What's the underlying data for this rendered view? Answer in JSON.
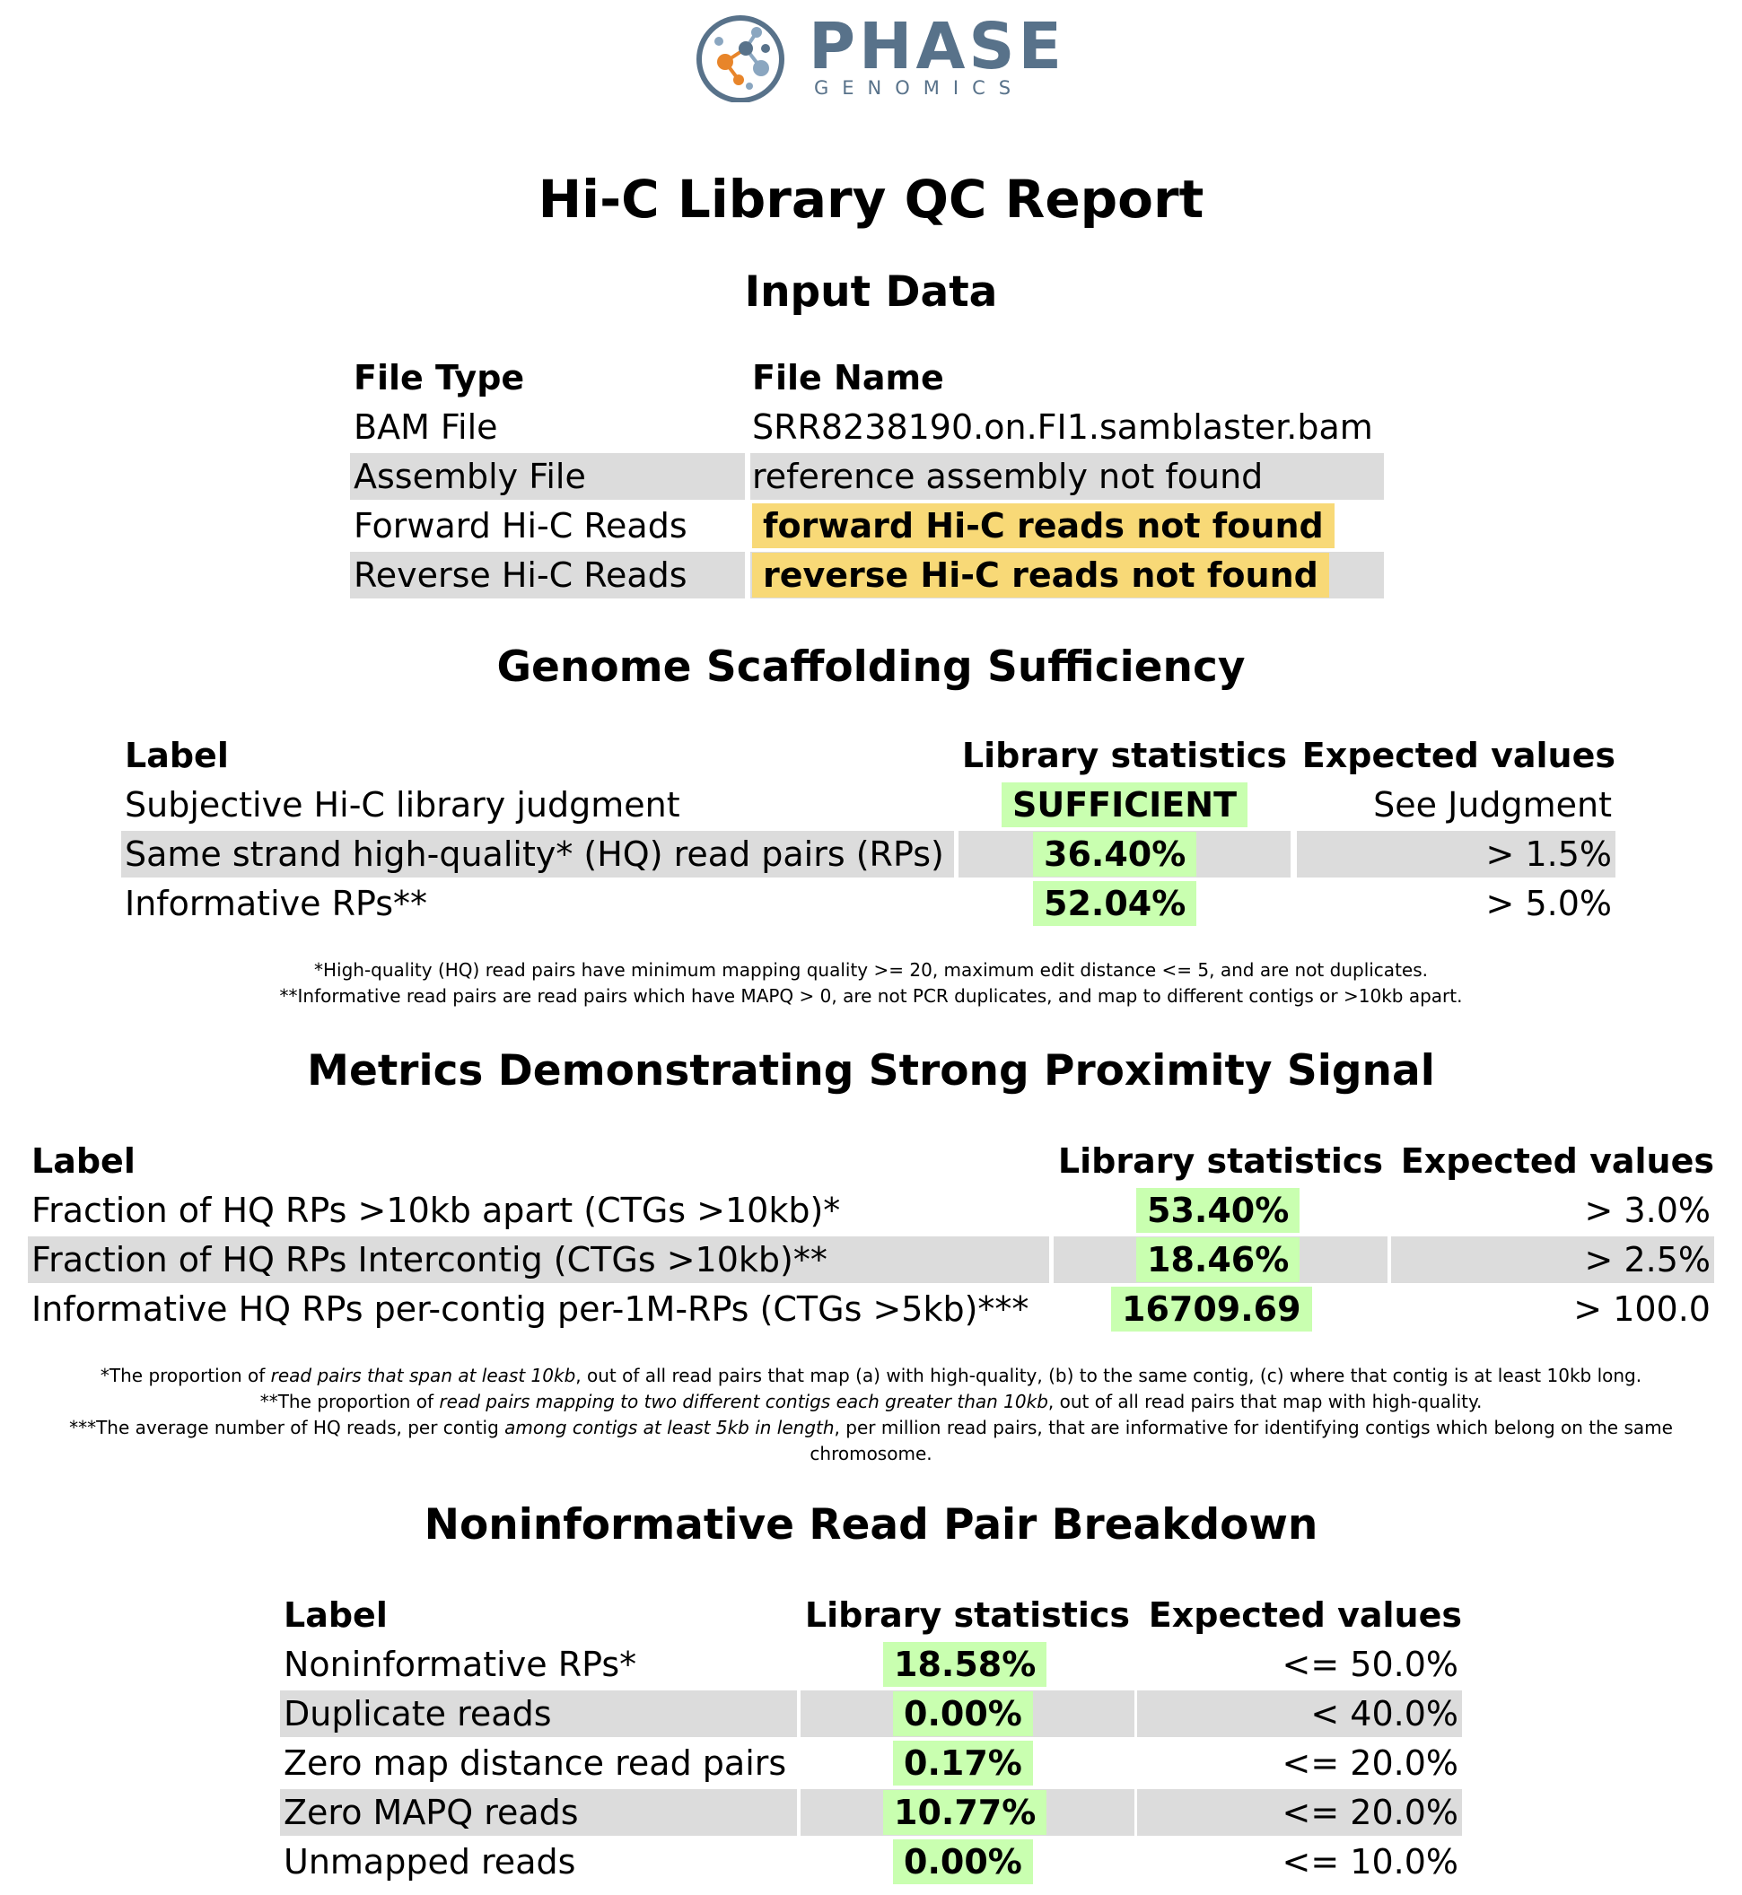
{
  "logo": {
    "brand": "PHASE",
    "sub": "GENOMICS",
    "colors": {
      "text": "#58728a",
      "accent": "#e8852a",
      "node": "#8aa6c0"
    }
  },
  "title": "Hi-C Library QC Report",
  "input_data": {
    "heading": "Input Data",
    "headers": {
      "type": "File Type",
      "name": "File Name"
    },
    "rows": [
      {
        "type": "BAM File",
        "name": "SRR8238190.on.FI1.samblaster.bam"
      },
      {
        "type": "Assembly File",
        "name": "reference assembly not found"
      },
      {
        "type": "Forward Hi-C Reads",
        "name": "forward Hi-C reads not found"
      },
      {
        "type": "Reverse Hi-C Reads",
        "name": "reverse Hi-C reads not found"
      }
    ]
  },
  "scaffolding": {
    "heading": "Genome Scaffolding Sufficiency",
    "headers": {
      "label": "Label",
      "stat": "Library statistics",
      "expected": "Expected values"
    },
    "rows": [
      {
        "label": "Subjective Hi-C library judgment",
        "stat": "SUFFICIENT",
        "expected": "See Judgment"
      },
      {
        "label": "Same strand high-quality* (HQ) read pairs (RPs)",
        "stat": "36.40%",
        "expected": "> 1.5%"
      },
      {
        "label": "Informative RPs**",
        "stat": "52.04%",
        "expected": "> 5.0%"
      }
    ],
    "notes": [
      "*High-quality (HQ) read pairs have minimum mapping quality >= 20, maximum edit distance <= 5, and are not duplicates.",
      "**Informative read pairs are read pairs which have MAPQ > 0, are not PCR duplicates, and map to different contigs or >10kb apart."
    ]
  },
  "proximity": {
    "heading": "Metrics Demonstrating Strong Proximity Signal",
    "headers": {
      "label": "Label",
      "stat": "Library statistics",
      "expected": "Expected values"
    },
    "rows": [
      {
        "label": "Fraction of HQ RPs >10kb apart (CTGs >10kb)*",
        "stat": "53.40%",
        "expected": "> 3.0%"
      },
      {
        "label": "Fraction of HQ RPs Intercontig (CTGs >10kb)**",
        "stat": "18.46%",
        "expected": "> 2.5%"
      },
      {
        "label": "Informative HQ RPs per-contig per-1M-RPs (CTGs >5kb)***",
        "stat": "16709.69",
        "expected": "> 100.0"
      }
    ],
    "notes": {
      "n1_a": "*The proportion of ",
      "n1_i": "read pairs that span at least 10kb",
      "n1_b": ", out of all read pairs that map (a) with high-quality, (b) to the same contig, (c) where that contig is at least 10kb long.",
      "n2_a": "**The proportion of ",
      "n2_i": "read pairs mapping to two different contigs each greater than 10kb",
      "n2_b": ", out of all read pairs that map with high-quality.",
      "n3_a": "***The average number of HQ reads, per contig ",
      "n3_i": "among contigs at least 5kb in length",
      "n3_b": ", per million read pairs, that are informative for identifying contigs which belong on the same",
      "n3_c": "chromosome."
    }
  },
  "noninformative": {
    "heading": "Noninformative Read Pair Breakdown",
    "headers": {
      "label": "Label",
      "stat": "Library statistics",
      "expected": "Expected values"
    },
    "rows": [
      {
        "label": "Noninformative RPs*",
        "stat": "18.58%",
        "expected": "<= 50.0%"
      },
      {
        "label": "Duplicate reads",
        "stat": "0.00%",
        "expected": "< 40.0%"
      },
      {
        "label": "Zero map distance read pairs",
        "stat": "0.17%",
        "expected": "<= 20.0%"
      },
      {
        "label": "Zero MAPQ reads",
        "stat": "10.77%",
        "expected": "<= 20.0%"
      },
      {
        "label": "Unmapped reads",
        "stat": "0.00%",
        "expected": "<= 10.0%"
      }
    ]
  }
}
